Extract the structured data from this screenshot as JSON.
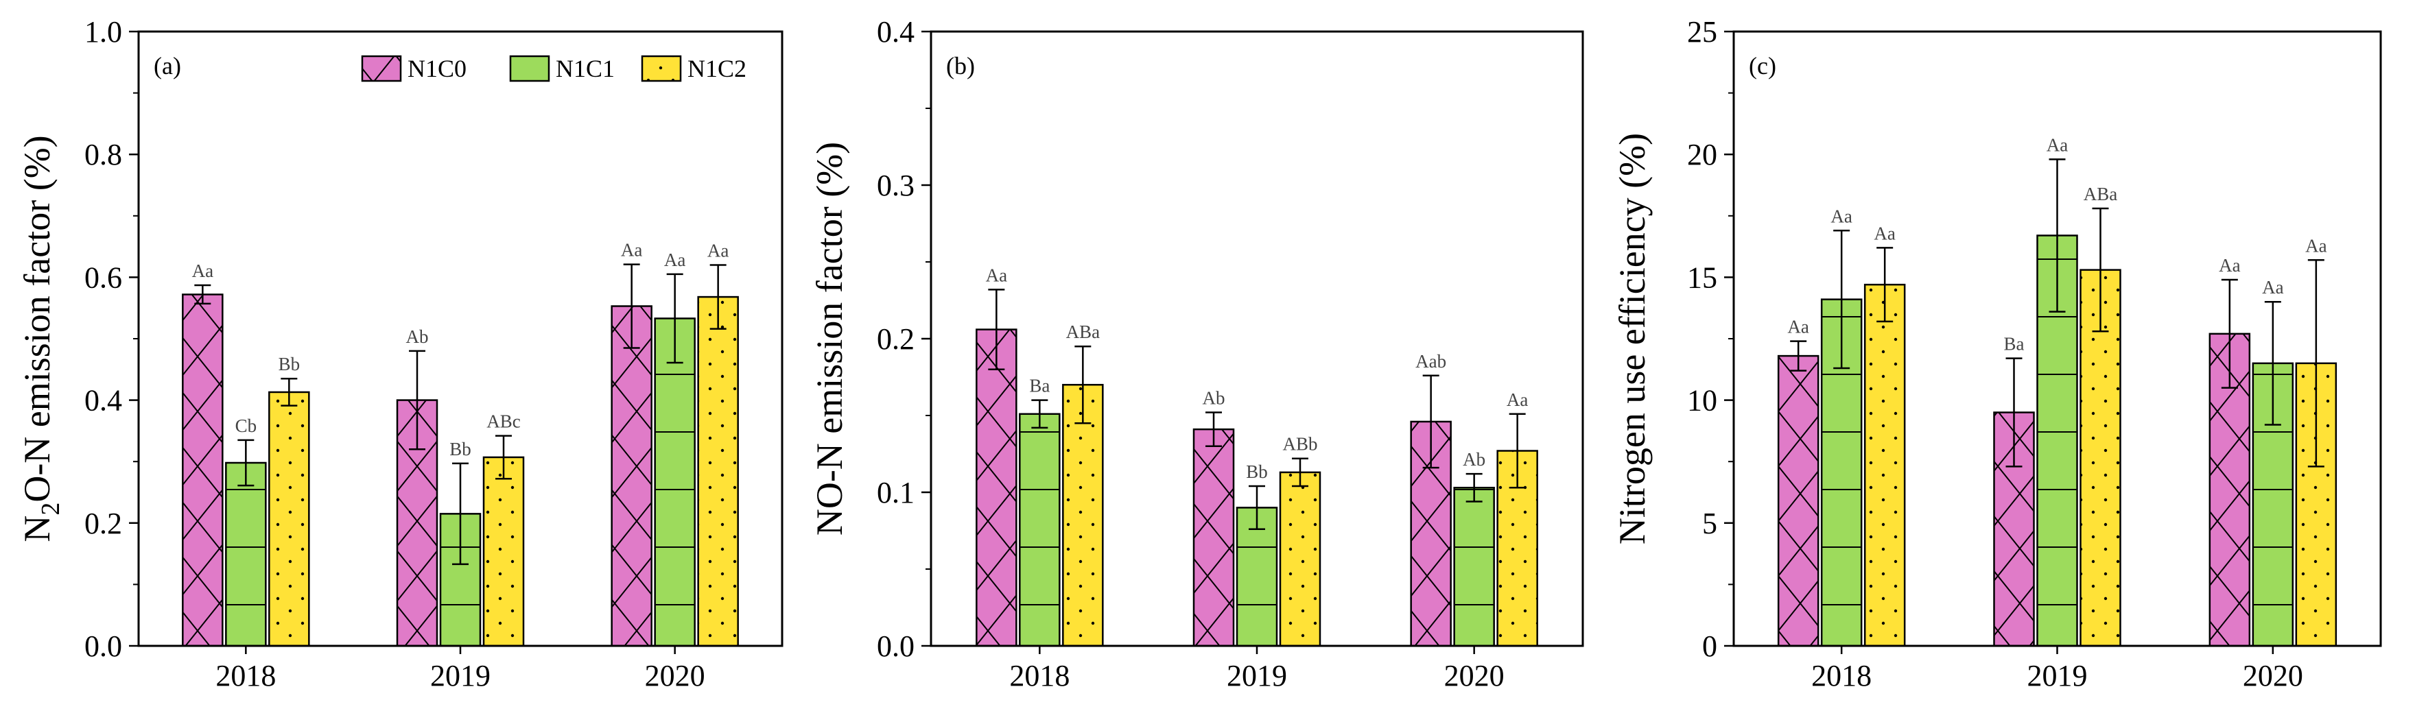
{
  "figure": {
    "colors": {
      "N1C0": "#e07bc8",
      "N1C1": "#9ddb5c",
      "N1C2": "#ffe237"
    },
    "legend": [
      "N1C0",
      "N1C1",
      "N1C2"
    ]
  },
  "chart_data": [
    {
      "type": "bar",
      "panel": "(a)",
      "ylabel_parts": [
        "N",
        "2",
        "O-N emission factor (%)"
      ],
      "categories": [
        "2018",
        "2019",
        "2020"
      ],
      "ylim": [
        0,
        1.0
      ],
      "yticks": [
        "0.0",
        "0.2",
        "0.4",
        "0.6",
        "0.8",
        "1.0"
      ],
      "ytick_values": [
        0,
        0.2,
        0.4,
        0.6,
        0.8,
        1.0
      ],
      "series": [
        {
          "name": "N1C0",
          "values": [
            0.572,
            0.4,
            0.553
          ],
          "errors": [
            0.015,
            0.08,
            0.068
          ],
          "labels": [
            "Aa",
            "Ab",
            "Aa"
          ]
        },
        {
          "name": "N1C1",
          "values": [
            0.298,
            0.215,
            0.533
          ],
          "errors": [
            0.037,
            0.082,
            0.072
          ],
          "labels": [
            "Cb",
            "Bb",
            "Aa"
          ]
        },
        {
          "name": "N1C2",
          "values": [
            0.413,
            0.307,
            0.568
          ],
          "errors": [
            0.022,
            0.035,
            0.052
          ],
          "labels": [
            "Bb",
            "ABc",
            "Aa"
          ]
        }
      ]
    },
    {
      "type": "bar",
      "panel": "(b)",
      "ylabel_parts": [
        "NO-N emission factor (%)"
      ],
      "categories": [
        "2018",
        "2019",
        "2020"
      ],
      "ylim": [
        0,
        0.4
      ],
      "yticks": [
        "0.0",
        "0.1",
        "0.2",
        "0.3",
        "0.4"
      ],
      "ytick_values": [
        0,
        0.1,
        0.2,
        0.3,
        0.4
      ],
      "series": [
        {
          "name": "N1C0",
          "values": [
            0.206,
            0.141,
            0.146
          ],
          "errors": [
            0.026,
            0.011,
            0.03
          ],
          "labels": [
            "Aa",
            "Ab",
            "Aab"
          ]
        },
        {
          "name": "N1C1",
          "values": [
            0.151,
            0.09,
            0.103
          ],
          "errors": [
            0.009,
            0.014,
            0.009
          ],
          "labels": [
            "Ba",
            "Bb",
            "Ab"
          ]
        },
        {
          "name": "N1C2",
          "values": [
            0.17,
            0.113,
            0.127
          ],
          "errors": [
            0.025,
            0.009,
            0.024
          ],
          "labels": [
            "ABa",
            "ABb",
            "Aa"
          ]
        }
      ]
    },
    {
      "type": "bar",
      "panel": "(c)",
      "ylabel_parts": [
        "Nitrogen use efficiency (%)"
      ],
      "categories": [
        "2018",
        "2019",
        "2020"
      ],
      "ylim": [
        0,
        25
      ],
      "yticks": [
        "0",
        "5",
        "10",
        "15",
        "20",
        "25"
      ],
      "ytick_values": [
        0,
        5,
        10,
        15,
        20,
        25
      ],
      "series": [
        {
          "name": "N1C0",
          "values": [
            11.8,
            9.5,
            12.7
          ],
          "errors": [
            0.6,
            2.2,
            2.2
          ],
          "labels": [
            "Aa",
            "Ba",
            "Aa"
          ]
        },
        {
          "name": "N1C1",
          "values": [
            14.1,
            16.7,
            11.5
          ],
          "errors": [
            2.8,
            3.1,
            2.5
          ],
          "labels": [
            "Aa",
            "Aa",
            "Aa"
          ]
        },
        {
          "name": "N1C2",
          "values": [
            14.7,
            15.3,
            11.5
          ],
          "errors": [
            1.5,
            2.5,
            4.2
          ],
          "labels": [
            "Aa",
            "ABa",
            "Aa"
          ]
        }
      ]
    }
  ]
}
